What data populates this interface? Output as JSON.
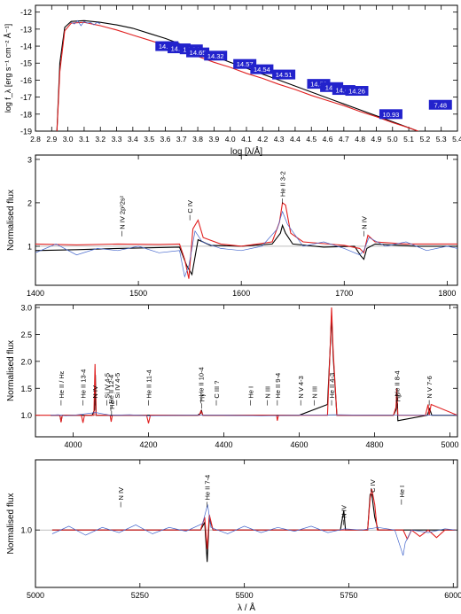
{
  "chart_data": [
    {
      "type": "line",
      "panel": "sed",
      "xlabel": "log [λ/Å]",
      "ylabel": "log f_λ [erg s⁻¹ cm⁻² Å⁻¹]",
      "xlim": [
        2.8,
        5.4
      ],
      "ylim": [
        -19,
        -11.6
      ],
      "xticks": [
        "2.8",
        "2.9",
        "3.0",
        "3.1",
        "3.2",
        "3.3",
        "3.4",
        "3.5",
        "3.6",
        "3.7",
        "3.8",
        "3.9",
        "4.0",
        "4.1",
        "4.2",
        "4.3",
        "4.4",
        "4.5",
        "4.6",
        "4.7",
        "4.8",
        "4.9",
        "5.0",
        "5.1",
        "5.2",
        "5.3",
        "5.4"
      ],
      "yticks": [
        "-12",
        "-13",
        "-14",
        "-15",
        "-16",
        "-17",
        "-18",
        "-19"
      ],
      "series": [
        {
          "color": "#000000",
          "x": [
            2.93,
            2.95,
            2.98,
            3.02,
            3.1,
            3.2,
            3.3,
            3.4,
            3.5,
            3.6,
            3.7,
            3.8,
            3.9,
            4.0,
            4.1,
            4.2,
            4.3,
            4.4,
            4.5,
            4.6,
            4.7,
            4.8,
            4.9,
            5.0,
            5.1,
            5.2,
            5.3
          ],
          "y": [
            -19.5,
            -15.0,
            -12.9,
            -12.55,
            -12.5,
            -12.6,
            -12.75,
            -12.95,
            -13.25,
            -13.55,
            -13.9,
            -14.25,
            -14.6,
            -14.95,
            -15.3,
            -15.65,
            -16.0,
            -16.35,
            -16.7,
            -17.05,
            -17.4,
            -17.75,
            -18.1,
            -18.45,
            -18.8,
            -19.15,
            -19.5
          ]
        },
        {
          "color": "#e02020",
          "x": [
            2.93,
            2.95,
            2.98,
            3.02,
            3.1,
            3.2,
            3.3,
            3.4,
            3.5,
            3.6,
            3.7,
            3.8,
            3.9,
            4.0,
            4.1,
            4.2,
            4.3,
            4.4,
            4.5,
            4.6,
            4.7,
            4.8,
            4.9,
            5.0,
            5.1,
            5.2,
            5.3
          ],
          "y": [
            -19.5,
            -15.5,
            -13.1,
            -12.65,
            -12.6,
            -12.8,
            -13.05,
            -13.35,
            -13.65,
            -13.95,
            -14.3,
            -14.6,
            -14.95,
            -15.25,
            -15.6,
            -15.9,
            -16.25,
            -16.55,
            -16.9,
            -17.2,
            -17.5,
            -17.85,
            -18.15,
            -18.5,
            -18.8,
            -19.15,
            -19.5
          ]
        },
        {
          "color": "#3a5fd0",
          "x": [
            3.02,
            3.04,
            3.06,
            3.08,
            3.1,
            3.12,
            3.14,
            3.16,
            3.18,
            3.2
          ],
          "y": [
            -12.6,
            -12.7,
            -12.5,
            -12.8,
            -12.55,
            -12.65,
            -12.6,
            -12.75,
            -12.6,
            -12.7
          ]
        }
      ],
      "photometry": [
        {
          "label": "14.04",
          "x": 3.61,
          "y": -14.0
        },
        {
          "label": "14.29",
          "x": 3.685,
          "y": -14.13
        },
        {
          "label": "14.24",
          "x": 3.76,
          "y": -14.19
        },
        {
          "label": "14.65",
          "x": 3.8,
          "y": -14.37
        },
        {
          "label": "14.32",
          "x": 3.91,
          "y": -14.56
        },
        {
          "label": "14.57",
          "x": 4.09,
          "y": -15.05
        },
        {
          "label": "14.54",
          "x": 4.195,
          "y": -15.36
        },
        {
          "label": "14.51",
          "x": 4.33,
          "y": -15.67
        },
        {
          "label": "14.53",
          "x": 4.545,
          "y": -16.22
        },
        {
          "label": "14.3",
          "x": 4.625,
          "y": -16.41
        },
        {
          "label": "14.60",
          "x": 4.7,
          "y": -16.58
        },
        {
          "label": "14.26",
          "x": 4.78,
          "y": -16.63
        },
        {
          "label": "10.93",
          "x": 4.99,
          "y": -18.0
        },
        {
          "label": "7.48",
          "x": 5.295,
          "y": -17.45
        }
      ]
    },
    {
      "type": "line",
      "panel": "uv",
      "ylabel": "Normalised flux",
      "xlim": [
        1400,
        1810
      ],
      "ylim": [
        0.1,
        3.1
      ],
      "xticks": [
        "1400",
        "1500",
        "1600",
        "1700",
        "1800"
      ],
      "yticks": [
        "1",
        "2",
        "3"
      ],
      "annotations": [
        {
          "text": "N IV 2p²2s²",
          "x": 1484,
          "y": 1.35
        },
        {
          "text": "C IV",
          "x": 1550,
          "y": 1.72
        },
        {
          "text": "He II 3-2",
          "x": 1640,
          "y": 2.1
        },
        {
          "text": "N IV",
          "x": 1719,
          "y": 1.35
        }
      ],
      "lines": [
        {
          "color": "#000000",
          "x": [
            1400,
            1440,
            1480,
            1520,
            1540,
            1547,
            1552,
            1558,
            1570,
            1600,
            1630,
            1638,
            1640,
            1643,
            1650,
            1680,
            1710,
            1716,
            1719,
            1722,
            1730,
            1770,
            1810
          ],
          "y": [
            0.9,
            0.92,
            0.95,
            0.97,
            0.98,
            0.55,
            0.35,
            1.15,
            1.02,
            1.0,
            1.05,
            1.3,
            1.48,
            1.3,
            1.05,
            0.98,
            1.0,
            0.78,
            0.7,
            0.95,
            1.05,
            1.0,
            1.0
          ]
        },
        {
          "color": "#e02020",
          "x": [
            1400,
            1440,
            1480,
            1520,
            1540,
            1545,
            1549,
            1553,
            1558,
            1563,
            1580,
            1600,
            1630,
            1637,
            1640,
            1643,
            1648,
            1660,
            1700,
            1715,
            1719,
            1723,
            1730,
            1760,
            1810
          ],
          "y": [
            1.05,
            1.03,
            1.05,
            1.04,
            1.05,
            0.7,
            0.25,
            1.4,
            1.6,
            1.2,
            1.05,
            1.0,
            1.1,
            1.55,
            2.0,
            1.95,
            1.3,
            1.1,
            1.02,
            0.95,
            0.85,
            1.25,
            1.1,
            1.05,
            1.05
          ]
        },
        {
          "color": "#4466cc",
          "x": [
            1400,
            1420,
            1440,
            1460,
            1480,
            1500,
            1520,
            1540,
            1545,
            1549,
            1555,
            1562,
            1580,
            1600,
            1620,
            1635,
            1640,
            1645,
            1660,
            1680,
            1700,
            1715,
            1719,
            1724,
            1740,
            1760,
            1780,
            1800,
            1810
          ],
          "y": [
            0.85,
            1.05,
            0.8,
            0.95,
            0.9,
            1.0,
            0.85,
            0.9,
            0.3,
            0.55,
            1.35,
            1.1,
            0.95,
            0.9,
            1.0,
            1.4,
            1.8,
            1.5,
            1.0,
            1.1,
            0.95,
            0.8,
            0.9,
            1.2,
            1.0,
            1.1,
            0.9,
            1.0,
            0.95
          ]
        }
      ]
    },
    {
      "type": "line",
      "panel": "optical-blue",
      "ylabel": "Normalised flux",
      "xlim": [
        3900,
        5020
      ],
      "ylim": [
        0.6,
        3.05
      ],
      "xticks": [
        "4000",
        "4200",
        "4400",
        "4600",
        "4800",
        "5000"
      ],
      "yticks": [
        "1.0",
        "1.5",
        "2.0",
        "2.5",
        "3.0"
      ],
      "annotations": [
        {
          "text": "He II / Hε",
          "x": 3968,
          "y": 1.28
        },
        {
          "text": "He II 13-4",
          "x": 4026,
          "y": 1.28
        },
        {
          "text": "N IV",
          "x": 4058,
          "y": 1.28
        },
        {
          "text": "Si IV 4-5",
          "x": 4089,
          "y": 1.28
        },
        {
          "text": "He II 12-4",
          "x": 4100,
          "y": 1.18
        },
        {
          "text": "Hδ",
          "x": 4102,
          "y": 1.08
        },
        {
          "text": "Si IV 4-5",
          "x": 4116,
          "y": 1.28
        },
        {
          "text": "He II 11-4",
          "x": 4200,
          "y": 1.28
        },
        {
          "text": "He II 10-4",
          "x": 4339,
          "y": 1.32
        },
        {
          "text": "Hγ",
          "x": 4341,
          "y": 1.22
        },
        {
          "text": "C III ?",
          "x": 4380,
          "y": 1.28
        },
        {
          "text": "He I",
          "x": 4471,
          "y": 1.28
        },
        {
          "text": "N III",
          "x": 4515,
          "y": 1.28
        },
        {
          "text": "He II 9-4",
          "x": 4542,
          "y": 1.28
        },
        {
          "text": "N V 4-3",
          "x": 4604,
          "y": 1.28
        },
        {
          "text": "N III",
          "x": 4640,
          "y": 1.28
        },
        {
          "text": "He II 4-3",
          "x": 4686,
          "y": 1.28
        },
        {
          "text": "He II 8-4",
          "x": 4859,
          "y": 1.32
        },
        {
          "text": "Hβ",
          "x": 4861,
          "y": 1.22
        },
        {
          "text": "N V 7-6",
          "x": 4945,
          "y": 1.28
        }
      ],
      "lines": [
        {
          "color": "#000000",
          "x": [
            3940,
            3965,
            3968,
            3971,
            4050,
            4057,
            4059,
            4061,
            4330,
            4339,
            4341,
            4344,
            4600,
            4675,
            4682,
            4686,
            4690,
            4700,
            4850,
            4857,
            4859,
            4862,
            4940,
            4946,
            4952,
            5020
          ],
          "y": [
            1.0,
            1.0,
            0.88,
            1.0,
            1.0,
            1.1,
            1.75,
            1.0,
            1.0,
            1.04,
            1.08,
            1.0,
            1.0,
            1.2,
            2.2,
            2.85,
            2.1,
            1.0,
            1.0,
            1.1,
            1.4,
            0.9,
            1.0,
            1.12,
            1.0,
            1.0
          ]
        },
        {
          "color": "#e02020",
          "x": [
            3900,
            3965,
            3968,
            3971,
            4022,
            4026,
            4030,
            4055,
            4058,
            4061,
            4098,
            4101,
            4104,
            4195,
            4200,
            4205,
            4335,
            4339,
            4345,
            4540,
            4542,
            4545,
            4675,
            4682,
            4686,
            4690,
            4700,
            4850,
            4857,
            4859,
            4862,
            4935,
            4942,
            4945,
            4950,
            5020
          ],
          "y": [
            1.0,
            1.0,
            0.87,
            1.0,
            1.0,
            0.86,
            1.0,
            1.0,
            1.95,
            1.0,
            1.0,
            0.88,
            1.0,
            1.0,
            0.85,
            1.0,
            1.0,
            1.08,
            1.0,
            1.0,
            0.9,
            1.0,
            1.0,
            2.2,
            3.0,
            2.2,
            1.0,
            1.0,
            1.15,
            1.5,
            1.0,
            1.0,
            1.2,
            1.0,
            1.2,
            1.0
          ]
        },
        {
          "color": "#4466cc",
          "x": [
            3940,
            3960,
            3980,
            4000,
            4060,
            4100,
            4150,
            4200,
            4300,
            4400,
            4500,
            4600,
            4700,
            4800,
            4900,
            5000,
            5020
          ],
          "y": [
            1.0,
            1.01,
            0.99,
            1.0,
            1.05,
            1.0,
            1.01,
            0.99,
            1.0,
            1.0,
            0.99,
            1.0,
            1.01,
            1.0,
            1.0,
            1.0,
            1.0
          ]
        }
      ]
    },
    {
      "type": "line",
      "panel": "optical-red",
      "xlabel": "λ / Å",
      "ylabel": "Normalised flux",
      "xlim": [
        5000,
        6010
      ],
      "ylim": [
        0.55,
        1.55
      ],
      "xticks": [
        "5000",
        "5250",
        "5500",
        "5750",
        "6000"
      ],
      "yticks": [
        "1.0"
      ],
      "annotations": [
        {
          "text": "N IV",
          "x": 5204,
          "y": 1.22
        },
        {
          "text": "He II 7-4",
          "x": 5411,
          "y": 1.22
        },
        {
          "text": "N IV",
          "x": 5737,
          "y": 1.08
        },
        {
          "text": "C IV",
          "x": 5806,
          "y": 1.28
        },
        {
          "text": "He I",
          "x": 5876,
          "y": 1.24
        }
      ],
      "lines": [
        {
          "color": "#000000",
          "x": [
            5040,
            5395,
            5405,
            5411,
            5416,
            5425,
            5730,
            5735,
            5738,
            5742,
            5795,
            5801,
            5805,
            5812,
            5820,
            5900,
            6005
          ],
          "y": [
            1.0,
            1.0,
            1.06,
            0.75,
            1.1,
            1.0,
            1.0,
            1.1,
            1.15,
            1.0,
            1.0,
            1.28,
            1.28,
            1.1,
            1.0,
            1.0,
            1.0
          ]
        },
        {
          "color": "#e02020",
          "x": [
            5040,
            5395,
            5405,
            5411,
            5416,
            5425,
            5795,
            5801,
            5805,
            5812,
            5818,
            5880,
            5890,
            5900,
            5920,
            5940,
            5960,
            5980,
            6005
          ],
          "y": [
            1.0,
            1.0,
            1.1,
            0.85,
            1.12,
            1.0,
            1.0,
            1.25,
            1.32,
            1.2,
            1.0,
            1.0,
            0.93,
            1.0,
            0.95,
            1.0,
            0.94,
            1.0,
            1.0
          ]
        },
        {
          "color": "#4466cc",
          "x": [
            5040,
            5080,
            5120,
            5160,
            5200,
            5240,
            5280,
            5320,
            5360,
            5400,
            5412,
            5420,
            5460,
            5500,
            5540,
            5580,
            5620,
            5660,
            5700,
            5740,
            5780,
            5820,
            5860,
            5875,
            5880,
            5885,
            5900,
            5940,
            5980,
            6005
          ],
          "y": [
            0.97,
            1.03,
            0.96,
            1.02,
            0.98,
            1.04,
            0.97,
            1.02,
            0.99,
            1.05,
            1.2,
            1.02,
            0.97,
            1.03,
            0.98,
            1.02,
            0.99,
            1.03,
            0.98,
            1.01,
            1.0,
            1.02,
            1.0,
            0.85,
            0.8,
            0.9,
            1.0,
            0.98,
            1.01,
            1.0
          ]
        }
      ]
    }
  ]
}
